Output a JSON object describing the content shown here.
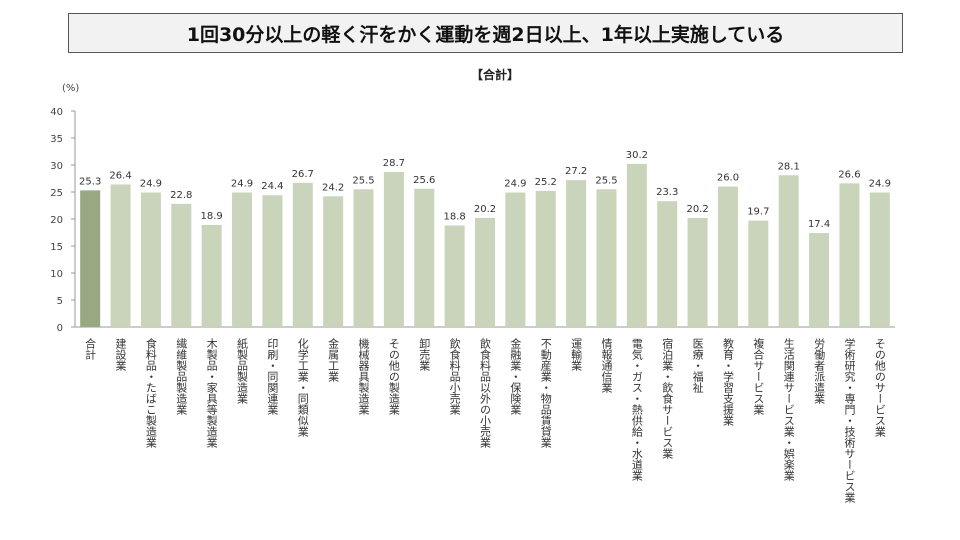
{
  "chart_data": {
    "type": "bar",
    "title": "1回30分以上の軽く汗をかく運動を週2日以上、1年以上実施している",
    "subtitle": "【合計】",
    "ylabel": "(%)",
    "xlabel": "",
    "ylim": [
      0,
      40
    ],
    "yticks": [
      0,
      5,
      10,
      15,
      20,
      25,
      30,
      35,
      40
    ],
    "grid": false,
    "categories": [
      "合計",
      "建設業",
      "食料品・たばこ製造業",
      "繊維製品製造業",
      "木製品・家具等製造業",
      "紙製品製造業",
      "印刷・同関連業",
      "化学工業・同類似業",
      "金属工業",
      "機械器具製造業",
      "その他の製造業",
      "卸売業",
      "飲食料品小売業",
      "飲食料品以外の小売業",
      "金融業・保険業",
      "不動産業・物品賃貸業",
      "運輸業",
      "情報通信業",
      "電気・ガス・熱供給・水道業",
      "宿泊業・飲食サービス業",
      "医療・福祉",
      "教育・学習支援業",
      "複合サービス業",
      "生活関連サービス業・娯楽業",
      "労働者派遣業",
      "学術研究・専門・技術サービス業",
      "その他のサービス業"
    ],
    "values": [
      25.3,
      26.4,
      24.9,
      22.8,
      18.9,
      24.9,
      24.4,
      26.7,
      24.2,
      25.5,
      28.7,
      25.6,
      18.8,
      20.2,
      24.9,
      25.2,
      27.2,
      25.5,
      30.2,
      23.3,
      20.2,
      26.0,
      19.7,
      28.1,
      17.4,
      26.6,
      24.9
    ],
    "colors": {
      "highlight": "#97a883",
      "bar": "#c9d4bb"
    }
  }
}
